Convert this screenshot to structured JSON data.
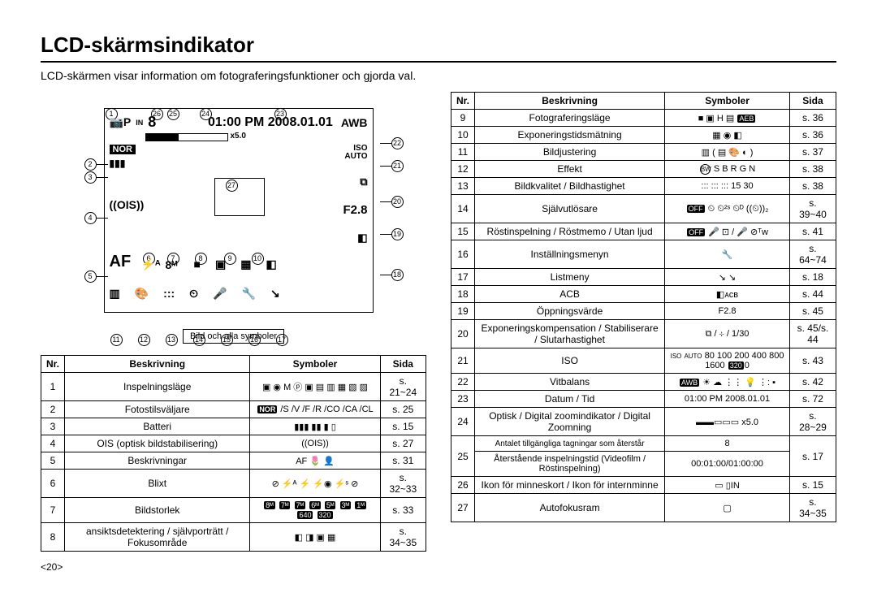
{
  "title": "LCD-skärmsindikator",
  "subtitle": "LCD-skärmen visar information om fotograferingsfunktioner och gjorda val.",
  "caption": "Bild och alla symboler",
  "page_num": "<20>",
  "lcd": {
    "mode_icon": "📷P",
    "card_icon": "IN",
    "count": "8",
    "time": "01:00 PM 2008.01.01",
    "awb": "AWB",
    "zoom": "x5.0",
    "nor": "NOR",
    "batt": "▮▮▮",
    "ois": "((OIS))",
    "af": "AF",
    "flash": "⚡ᴬ",
    "size": "8ᴹ",
    "iso": "ISO\nAUTO",
    "ev": "⧉",
    "fval": "F2.8",
    "mid_icons": [
      "■",
      "▣",
      "▦",
      "◧"
    ],
    "bot_icons": [
      "▥",
      "🎨",
      ":::",
      "⏲",
      "🎤",
      "🔧",
      "↘"
    ]
  },
  "headers": {
    "nr": "Nr.",
    "beskrivning": "Beskrivning",
    "symboler": "Symboler",
    "sida": "Sida"
  },
  "table_left": [
    {
      "nr": "1",
      "desc": "Inspelningsläge",
      "sym": "▣ ◉ M ⓟ ▣ ▤ ▥ ▦ ▧ ▨",
      "page": "s. 21~24"
    },
    {
      "nr": "2",
      "desc": "Fotostilsväljare",
      "sym": "NOR /S /V /F /R /CO /CA /CL",
      "page": "s. 25"
    },
    {
      "nr": "3",
      "desc": "Batteri",
      "sym": "▮▮▮ ▮▮ ▮ ▯",
      "page": "s. 15"
    },
    {
      "nr": "4",
      "desc": "OIS (optisk bildstabilisering)",
      "sym": "((OIS))",
      "page": "s. 27"
    },
    {
      "nr": "5",
      "desc": "Beskrivningar",
      "sym": "AF 🌷 👤",
      "page": "s. 31"
    },
    {
      "nr": "6",
      "desc": "Blixt",
      "sym": "⊘ ⚡ᴬ ⚡ ⚡◉ ⚡ˢ ⊘",
      "page": "s. 32~33"
    },
    {
      "nr": "7",
      "desc": "Bildstorlek",
      "sym": "8ᴹ 7ᴹ 7ᴹ 6ᴹ 5ᴹ 3ᴹ 1ᴹ 640 320",
      "page": "s. 33"
    },
    {
      "nr": "8",
      "desc": "ansiktsdetektering / självporträtt / Fokusområde",
      "sym": "◧ ◨ ▣ ▦",
      "page": "s. 34~35"
    }
  ],
  "table_right": [
    {
      "nr": "9",
      "desc": "Fotograferingsläge",
      "sym": "■ ▣ H ▤ AEB",
      "page": "s. 36"
    },
    {
      "nr": "10",
      "desc": "Exponeringstidsmätning",
      "sym": "▦ ◉ ◧",
      "page": "s. 36"
    },
    {
      "nr": "11",
      "desc": "Bildjustering",
      "sym": "▥ ( ▤ 🎨 ◐ )",
      "page": "s. 37"
    },
    {
      "nr": "12",
      "desc": "Effekt",
      "sym": "BW S B R G N",
      "page": "s. 38"
    },
    {
      "nr": "13",
      "desc": "Bildkvalitet / Bildhastighet",
      "sym": "::: ::: ::: 15 30",
      "page": "s. 38"
    },
    {
      "nr": "14",
      "desc": "Självutlösare",
      "sym": "OFF ⏲ ⏲²ˢ ⏲ᴰ ((⏲))₂",
      "page": "s. 39~40"
    },
    {
      "nr": "15",
      "desc": "Röstinspelning / Röstmemo / Utan ljud",
      "sym": "OFF 🎤 ⊡ / 🎤 ⊘ᵀw",
      "page": "s. 41"
    },
    {
      "nr": "16",
      "desc": "Inställningsmenyn",
      "sym": "🔧",
      "page": "s. 64~74"
    },
    {
      "nr": "17",
      "desc": "Listmeny",
      "sym": "↘ ↘",
      "page": "s. 18"
    },
    {
      "nr": "18",
      "desc": "ACB",
      "sym": "◧ᴀᴄʙ",
      "page": "s. 44"
    },
    {
      "nr": "19",
      "desc": "Öppningsvärde",
      "sym": "F2.8",
      "page": "s. 45"
    },
    {
      "nr": "20",
      "desc": "Exponeringskompensation / Stabiliserare / Slutarhastighet",
      "sym": "⧉ / ⊹ / 1/30",
      "page": "s. 45/s. 44"
    },
    {
      "nr": "21",
      "desc": "ISO",
      "sym": "ISO AUTO 80 100 200 400 800 1600 3200",
      "page": "s. 43"
    },
    {
      "nr": "22",
      "desc": "Vitbalans",
      "sym": "AWB ☀ ☁ ⋮⋮ 💡 ⋮: ▪",
      "page": "s. 42"
    },
    {
      "nr": "23",
      "desc": "Datum / Tid",
      "sym": "01:00 PM 2008.01.01",
      "page": "s. 72"
    },
    {
      "nr": "24",
      "desc": "Optisk / Digital zoomindikator / Digital Zoomning",
      "sym": "▬▬▭▭▭ x5.0",
      "page": "s. 28~29"
    },
    {
      "nr": "25",
      "desc": "Antalet tillgängliga tagningar som återstår\nÅterstående inspelningstid (Videofilm / Röstinspelning)",
      "sym": "8\n00:01:00/01:00:00",
      "page": "s. 17"
    },
    {
      "nr": "26",
      "desc": "Ikon för minneskort / Ikon för internminne",
      "sym": "▭ ▯IN",
      "page": "s. 15"
    },
    {
      "nr": "27",
      "desc": "Autofokusram",
      "sym": "▢",
      "page": "s. 34~35"
    }
  ]
}
